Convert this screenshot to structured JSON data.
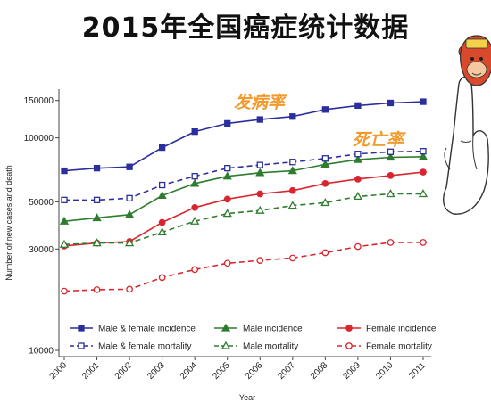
{
  "page": {
    "title": "2015年全国癌症统计数据"
  },
  "annotations": [
    {
      "id": "incidence",
      "text": "发病率"
    },
    {
      "id": "mortality",
      "text": "死亡率"
    }
  ],
  "colors": {
    "navy": "#2b2f9e",
    "green": "#2e7d2e",
    "red": "#d9262e",
    "orange": "#f39a2c"
  },
  "chart_data": {
    "type": "line",
    "title": "",
    "xlabel": "Year",
    "ylabel": "Number of new cases and death",
    "yscale": "log",
    "ylim": [
      10000,
      150000
    ],
    "yticks": [
      10000,
      30000,
      50000,
      100000,
      150000
    ],
    "ytick_labels": [
      "10000",
      "30000",
      "50000",
      "100000",
      "150000"
    ],
    "x": [
      "2000",
      "2001",
      "2002",
      "2003",
      "2004",
      "2005",
      "2006",
      "2007",
      "2008",
      "2009",
      "2010",
      "2011"
    ],
    "grid": false,
    "legend_position": "bottom",
    "series": [
      {
        "name": "Male & female incidence",
        "color": "#2b2f9e",
        "dashed": false,
        "marker": "square",
        "filled": true,
        "values": [
          70000,
          72000,
          73000,
          90000,
          107000,
          117000,
          122000,
          126000,
          136000,
          142000,
          146000,
          148000
        ]
      },
      {
        "name": "Male incidence",
        "color": "#2e7d2e",
        "dashed": false,
        "marker": "triangle",
        "filled": true,
        "values": [
          40500,
          42000,
          43500,
          53500,
          61000,
          66000,
          68500,
          70000,
          75000,
          79000,
          81000,
          81500
        ]
      },
      {
        "name": "Female incidence",
        "color": "#d9262e",
        "dashed": false,
        "marker": "circle",
        "filled": true,
        "values": [
          31000,
          32000,
          32500,
          40000,
          47000,
          51500,
          54500,
          56500,
          61000,
          64000,
          66500,
          69000
        ]
      },
      {
        "name": "Male & female mortality",
        "color": "#2b2f9e",
        "dashed": true,
        "marker": "square",
        "filled": false,
        "values": [
          51000,
          51000,
          52000,
          60000,
          66000,
          72000,
          74500,
          77000,
          80000,
          84000,
          86000,
          86500
        ]
      },
      {
        "name": "Male mortality",
        "color": "#2e7d2e",
        "dashed": true,
        "marker": "triangle",
        "filled": false,
        "values": [
          31500,
          32000,
          32000,
          36000,
          40500,
          44000,
          45500,
          48000,
          49500,
          53000,
          54500,
          54500
        ]
      },
      {
        "name": "Female mortality",
        "color": "#d9262e",
        "dashed": true,
        "marker": "circle",
        "filled": false,
        "values": [
          19000,
          19300,
          19400,
          22000,
          24000,
          25700,
          26500,
          27200,
          28800,
          30800,
          32200,
          32200
        ]
      }
    ]
  }
}
